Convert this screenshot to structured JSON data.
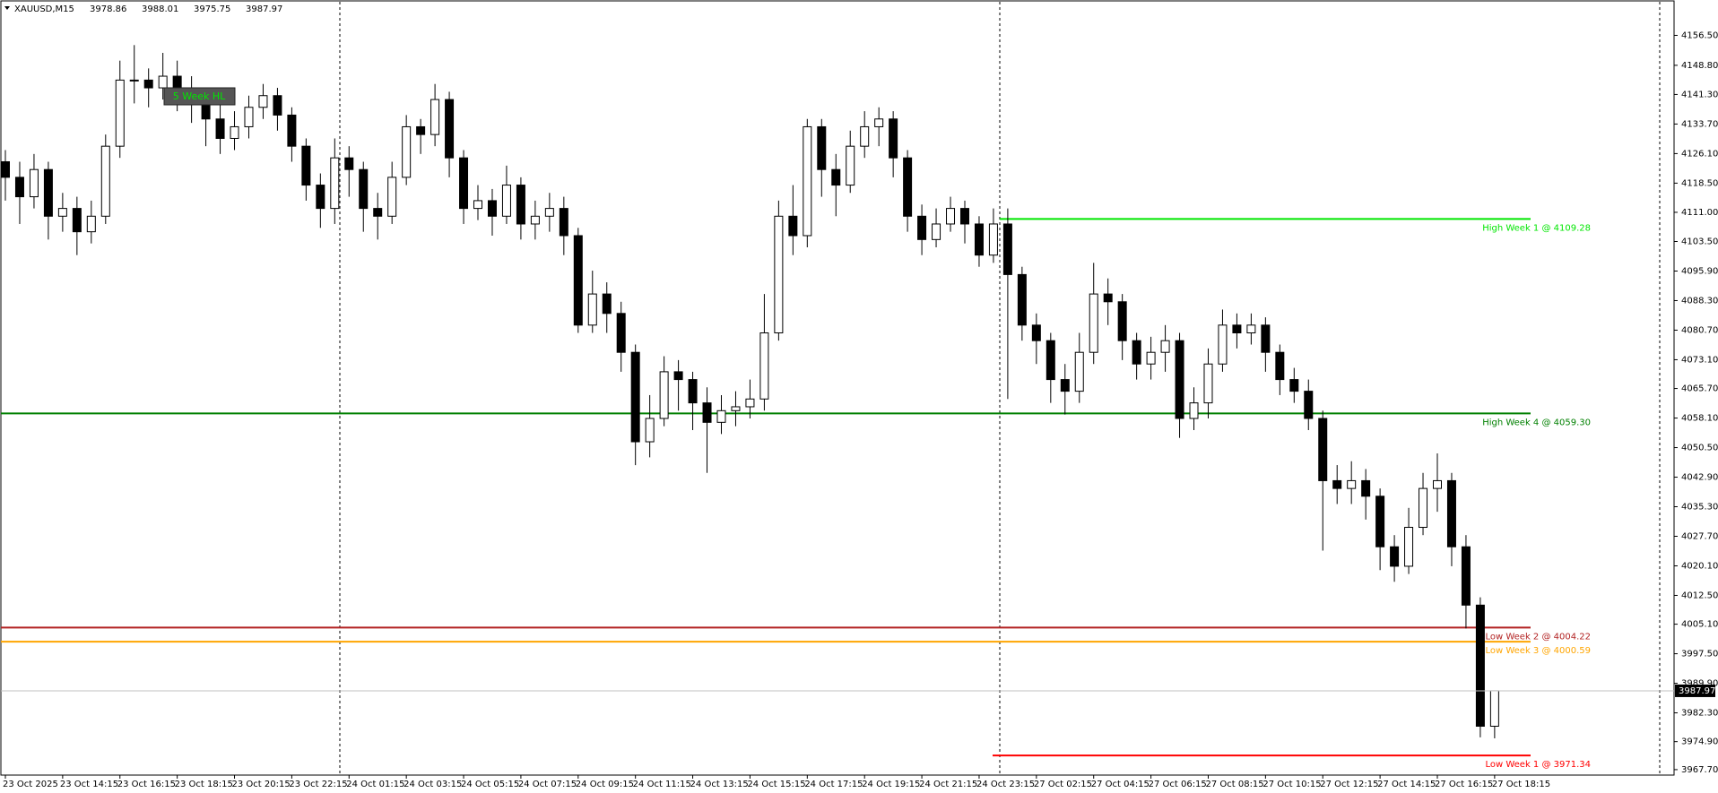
{
  "chart_data": {
    "type": "candlestick",
    "title": "XAUUSD,M15",
    "header_values": [
      3978.86,
      3988.01,
      3975.75,
      3987.97
    ],
    "label_box": "5 Week HL",
    "last_price": 3987.97,
    "up_color": "#ffffff",
    "down_color": "#000000",
    "outline_color": "#000000",
    "ylim": [
      3966.3,
      4164.9
    ],
    "yticks": [
      {
        "value": 4156.5,
        "label": "4156.50"
      },
      {
        "value": 4148.8,
        "label": "4148.80"
      },
      {
        "value": 4141.3,
        "label": "4141.30"
      },
      {
        "value": 4133.7,
        "label": "4133.70"
      },
      {
        "value": 4126.1,
        "label": "4126.10"
      },
      {
        "value": 4118.5,
        "label": "4118.50"
      },
      {
        "value": 4111,
        "label": "4111.00"
      },
      {
        "value": 4103.5,
        "label": "4103.50"
      },
      {
        "value": 4095.9,
        "label": "4095.90"
      },
      {
        "value": 4088.3,
        "label": "4088.30"
      },
      {
        "value": 4080.7,
        "label": "4080.70"
      },
      {
        "value": 4073.1,
        "label": "4073.10"
      },
      {
        "value": 4065.7,
        "label": "4065.70"
      },
      {
        "value": 4058.1,
        "label": "4058.10"
      },
      {
        "value": 4050.5,
        "label": "4050.50"
      },
      {
        "value": 4042.9,
        "label": "4042.90"
      },
      {
        "value": 4035.3,
        "label": "4035.30"
      },
      {
        "value": 4027.7,
        "label": "4027.70"
      },
      {
        "value": 4020.1,
        "label": "4020.10"
      },
      {
        "value": 4012.5,
        "label": "4012.50"
      },
      {
        "value": 4005.1,
        "label": "4005.10"
      },
      {
        "value": 3997.5,
        "label": "3997.50"
      },
      {
        "value": 3989.9,
        "label": "3989.90"
      },
      {
        "value": 3982.3,
        "label": "3982.30"
      },
      {
        "value": 3974.9,
        "label": "3974.90"
      },
      {
        "value": 3967.7,
        "label": "3967.70"
      }
    ],
    "categories": [
      "23 Oct 2025",
      null,
      null,
      null,
      "23 Oct 14:15",
      null,
      null,
      null,
      "23 Oct 16:15",
      null,
      null,
      null,
      "23 Oct 18:15",
      null,
      null,
      null,
      "23 Oct 20:15",
      null,
      null,
      null,
      "23 Oct 22:15",
      null,
      null,
      null,
      "24 Oct 01:15",
      null,
      null,
      null,
      "24 Oct 03:15",
      null,
      null,
      null,
      "24 Oct 05:15",
      null,
      null,
      null,
      "24 Oct 07:15",
      null,
      null,
      null,
      "24 Oct 09:15",
      null,
      null,
      null,
      "24 Oct 11:15",
      null,
      null,
      null,
      "24 Oct 13:15",
      null,
      null,
      null,
      "24 Oct 15:15",
      null,
      null,
      null,
      "24 Oct 17:15",
      null,
      null,
      null,
      "24 Oct 19:15",
      null,
      null,
      null,
      "24 Oct 21:15",
      null,
      null,
      null,
      "24 Oct 23:15",
      null,
      null,
      null,
      "27 Oct 02:15",
      null,
      null,
      null,
      "27 Oct 04:15",
      null,
      null,
      null,
      "27 Oct 06:15",
      null,
      null,
      null,
      "27 Oct 08:15",
      null,
      null,
      null,
      "27 Oct 10:15",
      null,
      null,
      null,
      "27 Oct 12:15",
      null,
      null,
      null,
      "27 Oct 14:15",
      null,
      null,
      null,
      "27 Oct 16:15",
      null,
      null,
      null,
      "27 Oct 18:15"
    ],
    "open": [
      4124,
      4120,
      4115,
      4122,
      4110,
      4112,
      4106,
      4110,
      4128,
      4145,
      4145,
      4143,
      4146,
      4142,
      4140,
      4135,
      4130,
      4133,
      4138,
      4141,
      4136,
      4128,
      4118,
      4112,
      4125,
      4122,
      4112,
      4110,
      4120,
      4133,
      4131,
      4140,
      4125,
      4112,
      4114,
      4110,
      4118,
      4108,
      4110,
      4112,
      4105,
      4082,
      4090,
      4085,
      4075,
      4052,
      4058,
      4070,
      4068,
      4062,
      4057,
      4060,
      4061,
      4063,
      4080,
      4110,
      4105,
      4133,
      4122,
      4118,
      4128,
      4133,
      4135,
      4125,
      4110,
      4104,
      4108,
      4112,
      4108,
      4100,
      4108,
      4095,
      4082,
      4078,
      4068,
      4065,
      4075,
      4090,
      4088,
      4078,
      4072,
      4075,
      4078,
      4058,
      4062,
      4072,
      4082,
      4080,
      4082,
      4075,
      4068,
      4065,
      4058,
      4042,
      4040,
      4042,
      4038,
      4025,
      4020,
      4030,
      4040,
      4042,
      4025,
      4010,
      3978.86
    ],
    "high": [
      4127,
      4124,
      4126,
      4124,
      4116,
      4115,
      4114,
      4131,
      4150,
      4154,
      4148,
      4152,
      4150,
      4146,
      4143,
      4139,
      4137,
      4141,
      4144,
      4143,
      4138,
      4130,
      4121,
      4130,
      4128,
      4124,
      4116,
      4124,
      4136,
      4135,
      4144,
      4142,
      4127,
      4118,
      4117,
      4123,
      4120,
      4114,
      4116,
      4115,
      4107,
      4096,
      4093,
      4088,
      4077,
      4064,
      4074,
      4073,
      4070,
      4066,
      4064,
      4065,
      4068,
      4090,
      4114,
      4118,
      4135,
      4135,
      4126,
      4132,
      4137,
      4138,
      4137,
      4127,
      4113,
      4112,
      4115,
      4114,
      4110,
      4112,
      4112,
      4097,
      4085,
      4080,
      4072,
      4080,
      4098,
      4094,
      4090,
      4080,
      4079,
      4082,
      4080,
      4066,
      4076,
      4086,
      4085,
      4085,
      4084,
      4077,
      4071,
      4068,
      4060,
      4046,
      4047,
      4045,
      4040,
      4028,
      4035,
      4044,
      4049,
      4044,
      4028,
      4012,
      3988.01
    ],
    "low": [
      4114,
      4108,
      4112,
      4104,
      4106,
      4100,
      4103,
      4108,
      4125,
      4139,
      4138,
      4140,
      4137,
      4134,
      4128,
      4126,
      4127,
      4130,
      4135,
      4132,
      4124,
      4114,
      4107,
      4108,
      4115,
      4106,
      4104,
      4108,
      4118,
      4126,
      4128,
      4120,
      4108,
      4109,
      4105,
      4108,
      4104,
      4104,
      4106,
      4100,
      4080,
      4080,
      4080,
      4070,
      4046,
      4048,
      4056,
      4060,
      4055,
      4044,
      4054,
      4056,
      4058,
      4060,
      4078,
      4100,
      4102,
      4115,
      4110,
      4116,
      4125,
      4128,
      4120,
      4106,
      4100,
      4102,
      4106,
      4103,
      4097,
      4098,
      4063,
      4078,
      4072,
      4062,
      4059,
      4062,
      4072,
      4082,
      4073,
      4068,
      4068,
      4070,
      4053,
      4055,
      4058,
      4070,
      4076,
      4077,
      4070,
      4064,
      4062,
      4055,
      4024,
      4036,
      4036,
      4032,
      4019,
      4016,
      4018,
      4028,
      4034,
      4020,
      4004,
      3976,
      3975.75
    ],
    "close": [
      4120,
      4115,
      4122,
      4110,
      4112,
      4106,
      4110,
      4128,
      4145,
      4145,
      4143,
      4146,
      4142,
      4140,
      4135,
      4130,
      4133,
      4138,
      4141,
      4136,
      4128,
      4118,
      4112,
      4125,
      4122,
      4112,
      4110,
      4120,
      4133,
      4131,
      4140,
      4125,
      4112,
      4114,
      4110,
      4118,
      4108,
      4110,
      4112,
      4105,
      4082,
      4090,
      4085,
      4075,
      4052,
      4058,
      4070,
      4068,
      4062,
      4057,
      4060,
      4061,
      4063,
      4080,
      4110,
      4105,
      4133,
      4122,
      4118,
      4128,
      4133,
      4135,
      4125,
      4110,
      4104,
      4108,
      4112,
      4108,
      4100,
      4108,
      4095,
      4082,
      4078,
      4068,
      4065,
      4075,
      4090,
      4088,
      4078,
      4072,
      4075,
      4078,
      4058,
      4062,
      4072,
      4082,
      4080,
      4082,
      4075,
      4068,
      4065,
      4058,
      4042,
      4040,
      4042,
      4038,
      4025,
      4020,
      4030,
      4040,
      4042,
      4025,
      4010,
      3978.86,
      3987.97
    ],
    "levels": [
      {
        "label": "High Week 1 @ 4109.28",
        "value": 4109.28,
        "color": "#00e600"
      },
      {
        "label": "High Week 4 @ 4059.30",
        "value": 4059.3,
        "color": "#008000"
      },
      {
        "label": "Low Week 2 @ 4004.22",
        "value": 4004.22,
        "color": "#b22222"
      },
      {
        "label": "Low Week 3 @ 4000.59",
        "value": 4000.59,
        "color": "#ffa500"
      },
      {
        "label": "Low Week 1 @ 3971.34",
        "value": 3971.34,
        "color": "#ff0000"
      }
    ]
  }
}
